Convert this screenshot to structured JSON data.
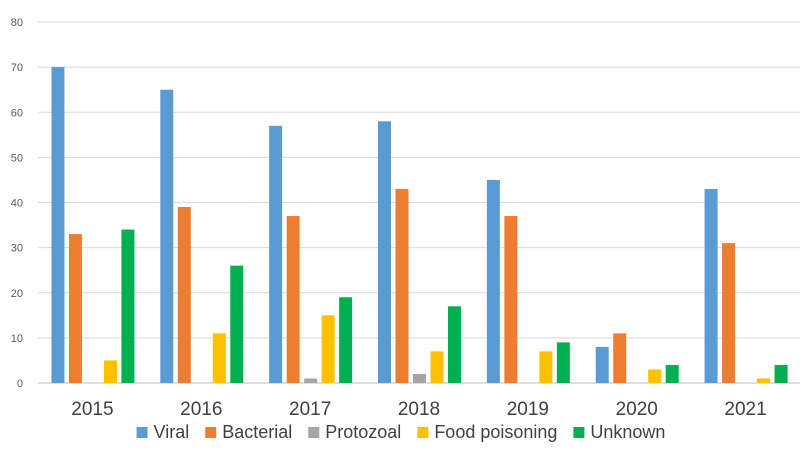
{
  "chart_data": {
    "type": "bar",
    "title": "",
    "xlabel": "",
    "ylabel": "",
    "categories": [
      "2015",
      "2016",
      "2017",
      "2018",
      "2019",
      "2020",
      "2021"
    ],
    "ylim": [
      0,
      80
    ],
    "yticks": [
      0,
      10,
      20,
      30,
      40,
      50,
      60,
      70,
      80
    ],
    "grid": true,
    "legend_position": "bottom",
    "series": [
      {
        "name": "Viral",
        "color": "#5b9bd5",
        "values": [
          70,
          65,
          57,
          58,
          45,
          8,
          43
        ]
      },
      {
        "name": "Bacterial",
        "color": "#ed7d31",
        "values": [
          33,
          39,
          37,
          43,
          37,
          11,
          31
        ]
      },
      {
        "name": "Protozoal",
        "color": "#a5a5a5",
        "values": [
          0,
          0,
          1,
          2,
          0,
          0,
          0
        ]
      },
      {
        "name": "Food poisoning",
        "color": "#ffc000",
        "values": [
          5,
          11,
          15,
          7,
          7,
          3,
          1
        ]
      },
      {
        "name": "Unknown",
        "color": "#00b050",
        "values": [
          34,
          26,
          19,
          17,
          9,
          4,
          4
        ]
      }
    ]
  }
}
